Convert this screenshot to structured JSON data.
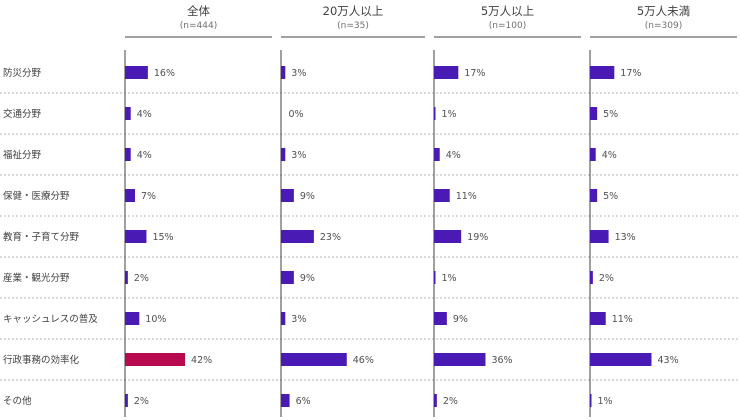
{
  "chart_data": {
    "type": "bar",
    "orientation": "horizontal",
    "categories": [
      "防災分野",
      "交通分野",
      "福祉分野",
      "保健・医療分野",
      "教育・子育て分野",
      "産業・観光分野",
      "キャッシュレスの普及",
      "行政事務の効率化",
      "その他"
    ],
    "groups": [
      {
        "title": "全体",
        "n": "(n=444)",
        "values": [
          16,
          4,
          4,
          7,
          15,
          2,
          10,
          42,
          2
        ],
        "labels": [
          "16%",
          "4%",
          "4%",
          "7%",
          "15%",
          "2%",
          "10%",
          "42%",
          "2%"
        ]
      },
      {
        "title": "20万人以上",
        "n": "(n=35)",
        "values": [
          3,
          0,
          3,
          9,
          23,
          9,
          3,
          46,
          6
        ],
        "labels": [
          "3%",
          "0%",
          "3%",
          "9%",
          "23%",
          "9%",
          "3%",
          "46%",
          "6%"
        ]
      },
      {
        "title": "5万人以上",
        "n": "(n=100)",
        "values": [
          17,
          1,
          4,
          11,
          19,
          1,
          9,
          36,
          2
        ],
        "labels": [
          "17%",
          "1%",
          "4%",
          "11%",
          "19%",
          "1%",
          "9%",
          "36%",
          "2%"
        ]
      },
      {
        "title": "5万人未満",
        "n": "(n=309)",
        "values": [
          17,
          5,
          4,
          5,
          13,
          2,
          11,
          43,
          1
        ],
        "labels": [
          "17%",
          "5%",
          "4%",
          "5%",
          "13%",
          "2%",
          "11%",
          "43%",
          "1%"
        ]
      }
    ],
    "highlight": {
      "group": 0,
      "category": 7
    },
    "xlim": [
      0,
      50
    ],
    "grid": false,
    "colors": {
      "bar": "#4a1ab5",
      "highlight": "#b80a4e",
      "axis": "#404040",
      "separator": "#b5b5b5",
      "text": "#404040"
    }
  }
}
